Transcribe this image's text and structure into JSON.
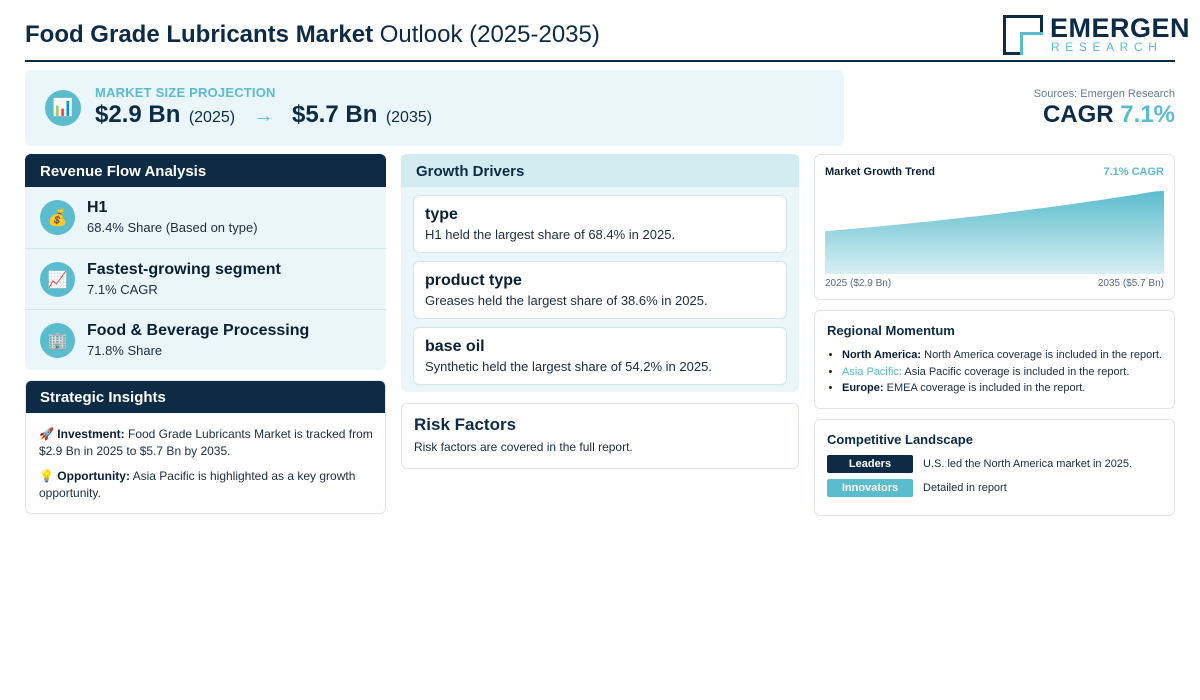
{
  "header": {
    "title_bold": "Food Grade Lubricants Market",
    "title_light": "Outlook (2025-2035)",
    "logo_main": "EMERGEN",
    "logo_sub": "RESEARCH"
  },
  "projection": {
    "icon": "bar-chart-icon",
    "label": "MARKET SIZE PROJECTION",
    "start_value": "$2.9 Bn",
    "start_year": "(2025)",
    "arrow": "→",
    "end_value": "$5.7 Bn",
    "end_year": "(2035)"
  },
  "summary": {
    "sources": "Sources: Emergen Research",
    "cagr_label": "CAGR",
    "cagr_value": "7.1%"
  },
  "revenue_flow": {
    "title": "Revenue Flow Analysis",
    "items": [
      {
        "icon": "money-bag-icon",
        "title": "H1",
        "subtitle": "68.4% Share (Based on type)"
      },
      {
        "icon": "trending-up-icon",
        "title": "Fastest-growing segment",
        "subtitle": "7.1% CAGR"
      },
      {
        "icon": "building-icon",
        "title": "Food & Beverage Processing",
        "subtitle": "71.8% Share"
      }
    ]
  },
  "strategic_insights": {
    "title": "Strategic Insights",
    "items": [
      {
        "icon": "rocket-icon",
        "label": "Investment:",
        "text": "Food Grade Lubricants Market is tracked from $2.9 Bn in 2025 to $5.7 Bn by 2035."
      },
      {
        "icon": "lightbulb-icon",
        "label": "Opportunity:",
        "text": "Asia Pacific is highlighted as a key growth opportunity."
      }
    ]
  },
  "growth_drivers": {
    "title": "Growth Drivers",
    "items": [
      {
        "title": "type",
        "text": "H1 held the largest share of 68.4% in 2025."
      },
      {
        "title": "product type",
        "text": "Greases held the largest share of 38.6% in 2025."
      },
      {
        "title": "base oil",
        "text": "Synthetic held the largest share of 54.2% in 2025."
      }
    ]
  },
  "risk_factors": {
    "title": "Risk Factors",
    "text": "Risk factors are covered in the full report."
  },
  "trend": {
    "title": "Market Growth Trend",
    "cagr": "7.1% CAGR",
    "start_label": "2025 ($2.9 Bn)",
    "end_label": "2035 ($5.7 Bn)",
    "colors": {
      "fill_top": "#5bbccd",
      "fill_bottom": "#d7eff4"
    }
  },
  "chart_data": {
    "type": "area",
    "x": [
      2025,
      2035
    ],
    "values": [
      2.9,
      5.7
    ],
    "title": "Market Growth Trend",
    "xlabel": "",
    "ylabel": ""
  },
  "regional": {
    "title": "Regional Momentum",
    "items": [
      {
        "region": "North America:",
        "text": "North America coverage is included in the report."
      },
      {
        "region": "Asia Pacific:",
        "text": "Asia Pacific coverage is included in the report."
      },
      {
        "region": "Europe:",
        "text": "EMEA coverage is included in the report."
      }
    ]
  },
  "competitive": {
    "title": "Competitive Landscape",
    "items": [
      {
        "badge": "Leaders",
        "text": "U.S. led the North America market in 2025."
      },
      {
        "badge": "Innovators",
        "text": "Detailed in report"
      }
    ]
  },
  "colors": {
    "navy": "#0d2b45",
    "accent": "#5bbccd",
    "panel_bg": "#eaf6f9"
  }
}
